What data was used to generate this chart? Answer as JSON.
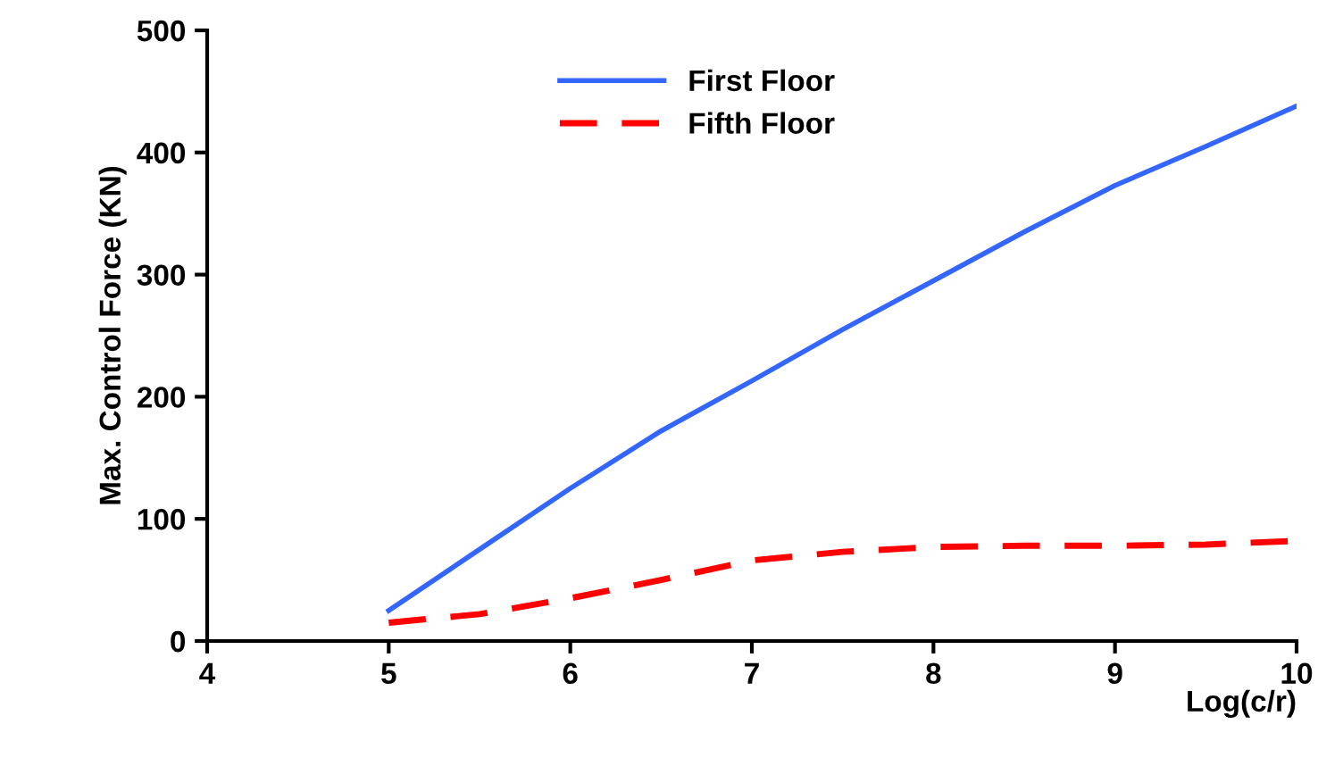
{
  "chart_data": {
    "type": "line",
    "xlabel": "Log(c/r)",
    "ylabel": "Max. Control Force (KN)",
    "x": [
      5,
      5.5,
      6,
      6.5,
      7,
      7.5,
      8,
      8.5,
      9,
      9.5,
      10
    ],
    "series": [
      {
        "name": "First Floor",
        "color": "#3366ff",
        "line_style": "solid",
        "values": [
          25,
          75,
          125,
          172,
          213,
          255,
          295,
          335,
          373,
          405,
          438
        ]
      },
      {
        "name": "Fifth Floor",
        "color": "#ff0000",
        "line_style": "dashed",
        "values": [
          15,
          22,
          35,
          50,
          66,
          73,
          77,
          78,
          78,
          79,
          82
        ]
      }
    ],
    "xlim": [
      4,
      10
    ],
    "xticks": [
      4,
      5,
      6,
      7,
      8,
      9,
      10
    ],
    "ylim": [
      0,
      500
    ],
    "yticks": [
      0,
      100,
      200,
      300,
      400,
      500
    ],
    "grid": false,
    "legend": "top",
    "marker": "none"
  }
}
